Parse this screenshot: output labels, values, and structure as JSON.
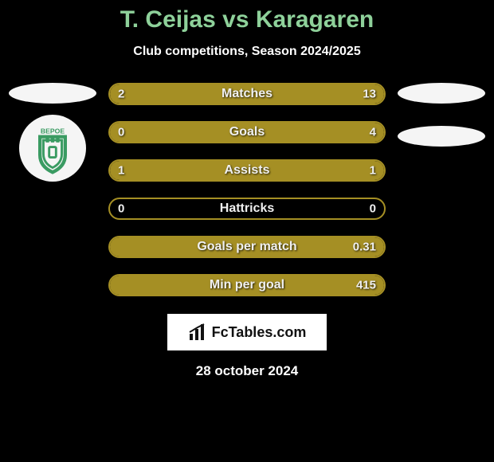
{
  "title": "T. Ceijas vs Karagaren",
  "subtitle": "Club competitions, Season 2024/2025",
  "date": "28 october 2024",
  "fctables_label": "FcTables.com",
  "colors": {
    "title": "#8ed19a",
    "bar_border": "#a58f24",
    "bar_fill": "#a58f24",
    "badge_green": "#3a9b62"
  },
  "bars": [
    {
      "label": "Matches",
      "left_val": "2",
      "right_val": "13",
      "left_pct": 13,
      "right_pct": 87
    },
    {
      "label": "Goals",
      "left_val": "0",
      "right_val": "4",
      "left_pct": 0,
      "right_pct": 100
    },
    {
      "label": "Assists",
      "left_val": "1",
      "right_val": "1",
      "left_pct": 50,
      "right_pct": 50
    },
    {
      "label": "Hattricks",
      "left_val": "0",
      "right_val": "0",
      "left_pct": 0,
      "right_pct": 0
    },
    {
      "label": "Goals per match",
      "left_val": "",
      "right_val": "0.31",
      "left_pct": 0,
      "right_pct": 100
    },
    {
      "label": "Min per goal",
      "left_val": "",
      "right_val": "415",
      "left_pct": 0,
      "right_pct": 100
    }
  ],
  "bar_style": {
    "height": 28,
    "border_radius": 14,
    "gap": 20,
    "label_fontsize": 16,
    "val_fontsize": 15
  }
}
